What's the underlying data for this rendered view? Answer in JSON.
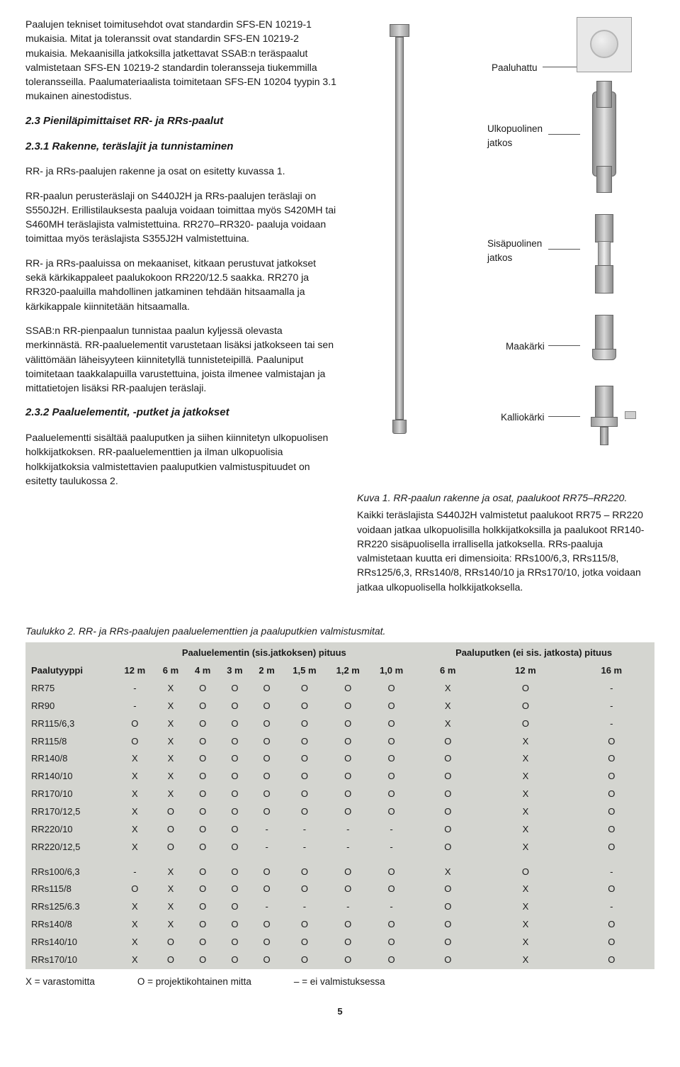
{
  "intro": {
    "p1": "Paalujen tekniset toimitusehdot ovat standardin SFS-EN 10219-1 mukaisia. Mitat ja toleranssit ovat standardin SFS-EN 10219-2 mukaisia. Mekaanisilla jatkoksilla jatkettavat SSAB:n teräspaalut valmistetaan SFS-EN 10219-2 standardin toleransseja tiukemmilla toleransseilla. Paalumateriaalista toimitetaan SFS-EN 10204 tyypin 3.1 mukainen ainestodistus."
  },
  "s23": {
    "heading": "2.3 Pieniläpimittaiset RR- ja RRs-paalut"
  },
  "s231": {
    "heading": "2.3.1 Rakenne, teräslajit ja tunnistaminen",
    "p1": "RR- ja RRs-paalujen rakenne ja osat on esitetty kuvassa 1.",
    "p2": "RR-paalun perusteräslaji on S440J2H ja RRs-paalujen teräslaji on S550J2H. Erillistilauksesta paaluja voidaan toimittaa myös S420MH tai S460MH teräslajista valmistettuina. RR270–RR320- paaluja voidaan toimittaa myös teräslajista S355J2H valmistettuina.",
    "p3": "RR- ja RRs-paaluissa on mekaaniset, kitkaan perustuvat jatkokset sekä kärkikappaleet paalukokoon RR220/12.5 saakka. RR270 ja RR320-paaluilla mahdollinen jatkaminen tehdään hitsaamalla ja kärkikappale kiinnitetään hitsaamalla.",
    "p4": "SSAB:n RR-pienpaalun tunnistaa paalun kyljessä olevasta merkinnästä. RR-paaluelementit varustetaan lisäksi jatkokseen tai sen välittömään läheisyyteen kiinnitetyllä tunnisteteipillä. Paaluniput toimitetaan taakkalapuilla varustettuina, joista ilmenee valmistajan ja mittatietojen lisäksi RR-paalujen teräslaji."
  },
  "s232": {
    "heading": "2.3.2 Paaluelementit, -putket ja jatkokset",
    "p1": "Paaluelementti sisältää paaluputken ja siihen kiinnitetyn ulkopuolisen holkkijatkoksen. RR-paaluelementtien ja ilman ulkopuolisia holkkijatkoksia valmistettavien paaluputkien valmistuspituudet on esitetty taulukossa 2.",
    "p2": "Kaikki teräslajista S440J2H valmistetut paalukoot RR75 – RR220 voidaan jatkaa ulkopuolisilla holkkijatkoksilla ja paalukoot RR140-RR220 sisäpuolisella irrallisella jatkoksella. RRs-paaluja valmistetaan kuutta eri dimensioita: RRs100/6,3, RRs115/8, RRs125/6,3, RRs140/8, RRs140/10 ja RRs170/10, jotka voidaan jatkaa ulkopuolisella holkkijatkoksella."
  },
  "figure": {
    "labels": {
      "paaluhattu": "Paaluhattu",
      "ulkopuolinen": "Ulkopuolinen jatkos",
      "sisapuolinen": "Sisäpuolinen jatkos",
      "maakarki": "Maakärki",
      "kalliokarki": "Kalliokärki"
    },
    "caption": "Kuva 1. RR-paalun rakenne ja osat, paalukoot RR75–RR220."
  },
  "table": {
    "title": "Taulukko 2. RR- ja RRs-paalujen paaluelementtien ja paaluputkien valmistusmitat.",
    "group1": "Paaluelementin (sis.jatkoksen) pituus",
    "group2": "Paaluputken (ei sis. jatkosta) pituus",
    "headers": [
      "Paalutyyppi",
      "12 m",
      "6 m",
      "4 m",
      "3 m",
      "2 m",
      "1,5 m",
      "1,2 m",
      "1,0 m",
      "6 m",
      "12 m",
      "16 m"
    ],
    "rows_rr": [
      [
        "RR75",
        "-",
        "X",
        "O",
        "O",
        "O",
        "O",
        "O",
        "O",
        "X",
        "O",
        "-"
      ],
      [
        "RR90",
        "-",
        "X",
        "O",
        "O",
        "O",
        "O",
        "O",
        "O",
        "X",
        "O",
        "-"
      ],
      [
        "RR115/6,3",
        "O",
        "X",
        "O",
        "O",
        "O",
        "O",
        "O",
        "O",
        "X",
        "O",
        "-"
      ],
      [
        "RR115/8",
        "O",
        "X",
        "O",
        "O",
        "O",
        "O",
        "O",
        "O",
        "O",
        "X",
        "O"
      ],
      [
        "RR140/8",
        "X",
        "X",
        "O",
        "O",
        "O",
        "O",
        "O",
        "O",
        "O",
        "X",
        "O"
      ],
      [
        "RR140/10",
        "X",
        "X",
        "O",
        "O",
        "O",
        "O",
        "O",
        "O",
        "O",
        "X",
        "O"
      ],
      [
        "RR170/10",
        "X",
        "X",
        "O",
        "O",
        "O",
        "O",
        "O",
        "O",
        "O",
        "X",
        "O"
      ],
      [
        "RR170/12,5",
        "X",
        "O",
        "O",
        "O",
        "O",
        "O",
        "O",
        "O",
        "O",
        "X",
        "O"
      ],
      [
        "RR220/10",
        "X",
        "O",
        "O",
        "O",
        "-",
        "-",
        "-",
        "-",
        "O",
        "X",
        "O"
      ],
      [
        "RR220/12,5",
        "X",
        "O",
        "O",
        "O",
        "-",
        "-",
        "-",
        "-",
        "O",
        "X",
        "O"
      ]
    ],
    "rows_rrs": [
      [
        "RRs100/6,3",
        "-",
        "X",
        "O",
        "O",
        "O",
        "O",
        "O",
        "O",
        "X",
        "O",
        "-"
      ],
      [
        "RRs115/8",
        "O",
        "X",
        "O",
        "O",
        "O",
        "O",
        "O",
        "O",
        "O",
        "X",
        "O"
      ],
      [
        "RRs125/6.3",
        "X",
        "X",
        "O",
        "O",
        "-",
        "-",
        "-",
        "-",
        "O",
        "X",
        "-"
      ],
      [
        "RRs140/8",
        "X",
        "X",
        "O",
        "O",
        "O",
        "O",
        "O",
        "O",
        "O",
        "X",
        "O"
      ],
      [
        "RRs140/10",
        "X",
        "O",
        "O",
        "O",
        "O",
        "O",
        "O",
        "O",
        "O",
        "X",
        "O"
      ],
      [
        "RRs170/10",
        "X",
        "O",
        "O",
        "O",
        "O",
        "O",
        "O",
        "O",
        "O",
        "X",
        "O"
      ]
    ],
    "legend": {
      "x": "X = varastomitta",
      "o": "O = projektikohtainen mitta",
      "dash": "– = ei valmistuksessa"
    }
  },
  "page_number": "5"
}
